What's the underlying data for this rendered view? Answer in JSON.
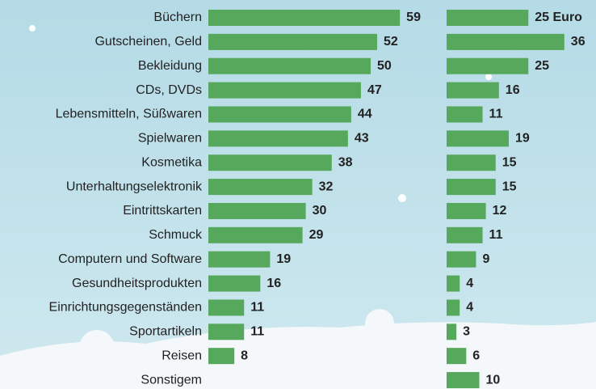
{
  "chart_data": [
    {
      "type": "bar",
      "orientation": "horizontal",
      "color": "#55a85c",
      "categories": [
        "Büchern",
        "Gutscheinen, Geld",
        "Bekleidung",
        "CDs, DVDs",
        "Lebensmitteln, Süßwaren",
        "Spielwaren",
        "Kosmetika",
        "Unterhaltungselektronik",
        "Eintrittskarten",
        "Schmuck",
        "Computern und Software",
        "Gesundheitsprodukten",
        "Einrichtungsgegenständen",
        "Sportartikeln",
        "Reisen",
        "Sonstigem"
      ],
      "values": [
        59,
        52,
        50,
        47,
        44,
        43,
        38,
        32,
        30,
        29,
        19,
        16,
        11,
        11,
        8,
        null
      ]
    },
    {
      "type": "bar",
      "orientation": "horizontal",
      "color": "#55a85c",
      "values": [
        25,
        36,
        25,
        16,
        11,
        19,
        15,
        15,
        12,
        11,
        9,
        4,
        4,
        3,
        6,
        10
      ],
      "value_labels": [
        "25 Euro",
        "36",
        "25",
        "16",
        "11",
        "19",
        "15",
        "15",
        "12",
        "11",
        "9",
        "4",
        "4",
        "3",
        "6",
        "10"
      ]
    }
  ]
}
